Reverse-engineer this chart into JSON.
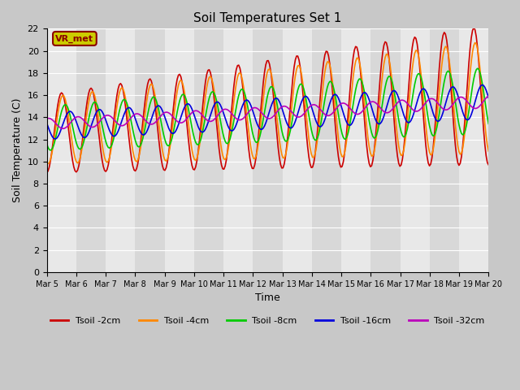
{
  "title": "Soil Temperatures Set 1",
  "xlabel": "Time",
  "ylabel": "Soil Temperature (C)",
  "xlim": [
    0,
    15
  ],
  "ylim": [
    0,
    22
  ],
  "yticks": [
    0,
    2,
    4,
    6,
    8,
    10,
    12,
    14,
    16,
    18,
    20,
    22
  ],
  "xtick_labels": [
    "Mar 5",
    "Mar 6",
    "Mar 7",
    "Mar 8",
    "Mar 9",
    "Mar 10",
    "Mar 11",
    "Mar 12",
    "Mar 13",
    "Mar 14",
    "Mar 15",
    "Mar 16",
    "Mar 17",
    "Mar 18",
    "Mar 19",
    "Mar 20"
  ],
  "series": [
    {
      "label": "Tsoil -2cm",
      "color": "#cc0000"
    },
    {
      "label": "Tsoil -4cm",
      "color": "#ff8800"
    },
    {
      "label": "Tsoil -8cm",
      "color": "#00cc00"
    },
    {
      "label": "Tsoil -16cm",
      "color": "#0000dd"
    },
    {
      "label": "Tsoil -32cm",
      "color": "#bb00bb"
    }
  ],
  "annotation_text": "VR_met",
  "annotation_color": "#8b0000",
  "annotation_bg": "#cccc00",
  "fig_bg": "#c8c8c8",
  "plot_bg": "#e0e0e0",
  "band_even": "#d8d8d8",
  "band_odd": "#e8e8e8"
}
